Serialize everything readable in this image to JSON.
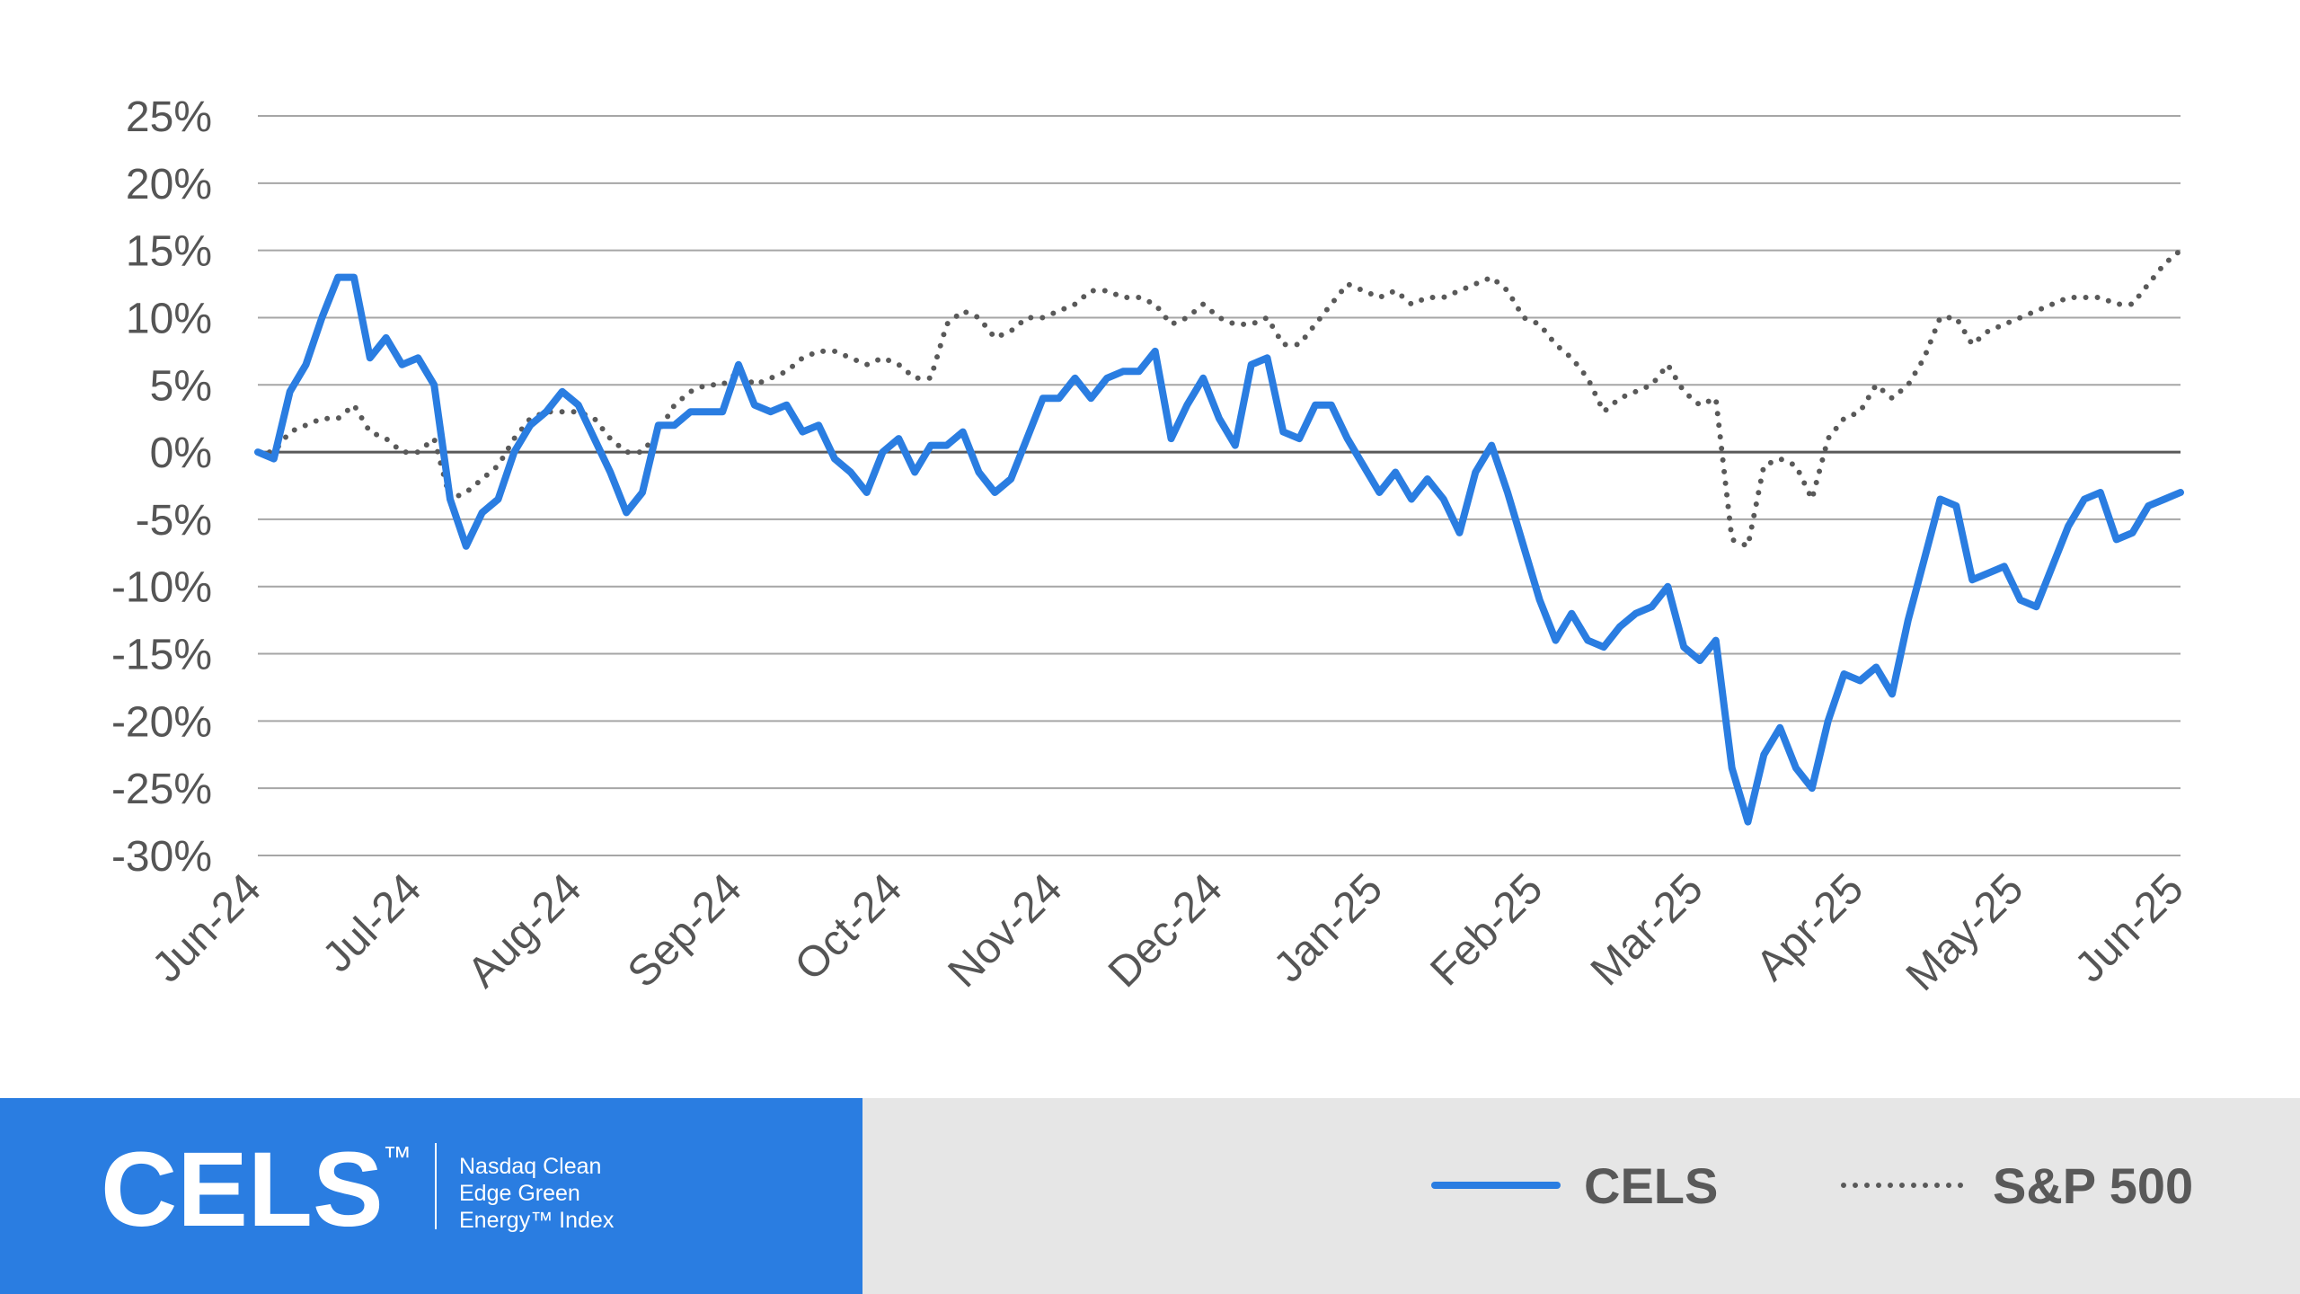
{
  "chart_data": {
    "type": "line",
    "categories": [
      "Jun-24",
      null,
      null,
      null,
      null,
      null,
      null,
      null,
      null,
      null,
      "Jul-24",
      null,
      null,
      null,
      null,
      null,
      null,
      null,
      null,
      null,
      "Aug-24",
      null,
      null,
      null,
      null,
      null,
      null,
      null,
      null,
      null,
      "Sep-24",
      null,
      null,
      null,
      null,
      null,
      null,
      null,
      null,
      null,
      "Oct-24",
      null,
      null,
      null,
      null,
      null,
      null,
      null,
      null,
      null,
      "Nov-24",
      null,
      null,
      null,
      null,
      null,
      null,
      null,
      null,
      null,
      "Dec-24",
      null,
      null,
      null,
      null,
      null,
      null,
      null,
      null,
      null,
      "Jan-25",
      null,
      null,
      null,
      null,
      null,
      null,
      null,
      null,
      null,
      "Feb-25",
      null,
      null,
      null,
      null,
      null,
      null,
      null,
      null,
      null,
      "Mar-25",
      null,
      null,
      null,
      null,
      null,
      null,
      null,
      null,
      null,
      "Apr-25",
      null,
      null,
      null,
      null,
      null,
      null,
      null,
      null,
      null,
      "May-25",
      null,
      null,
      null,
      null,
      null,
      null,
      null,
      null,
      null,
      "Jun-25"
    ],
    "series": [
      {
        "name": "CELS",
        "color": "#2a7de1",
        "style": "solid",
        "values": [
          0,
          -0.5,
          4.5,
          6.5,
          10,
          13,
          13,
          7,
          8.5,
          6.5,
          7,
          5,
          -3.5,
          -7,
          -4.5,
          -3.5,
          0,
          2,
          3,
          4.5,
          3.5,
          1,
          -1.5,
          -4.5,
          -3,
          2,
          2,
          3,
          3,
          3,
          6.5,
          3.5,
          3,
          3.5,
          1.5,
          2,
          -0.5,
          -1.5,
          -3,
          0,
          1,
          -1.5,
          0.5,
          0.5,
          1.5,
          -1.5,
          -3,
          -2,
          1,
          4,
          4,
          5.5,
          4,
          5.5,
          6,
          6,
          7.5,
          1,
          3.5,
          5.5,
          2.5,
          0.5,
          6.5,
          7,
          1.5,
          1,
          3.5,
          3.5,
          1,
          -1,
          -3,
          -1.5,
          -3.5,
          -2,
          -3.5,
          -6,
          -1.5,
          0.5,
          -3,
          -7,
          -11,
          -14,
          -12,
          -14,
          -14.5,
          -13,
          -12,
          -11.5,
          -10,
          -14.5,
          -15.5,
          -14,
          -23.5,
          -27.5,
          -22.5,
          -20.5,
          -23.5,
          -25,
          -20,
          -16.5,
          -17,
          -16,
          -18,
          -12.5,
          -8,
          -3.5,
          -4,
          -9.5,
          -9,
          -8.5,
          -11,
          -11.5,
          -8.5,
          -5.5,
          -3.5,
          -3,
          -6.5,
          -6,
          -4,
          -3.5,
          -3
        ]
      },
      {
        "name": "S&P 500",
        "color": "#595959",
        "style": "dotted",
        "values": [
          0,
          0,
          1.5,
          2,
          2.5,
          2.5,
          3.5,
          1.5,
          1,
          0,
          0,
          1,
          -3.5,
          -3,
          -2,
          -1,
          1,
          2.5,
          3,
          3,
          3,
          2.5,
          1,
          0,
          0,
          1.5,
          3.5,
          4.5,
          5,
          5,
          6,
          5,
          5.5,
          6,
          7,
          7.5,
          7.5,
          7,
          6.5,
          7,
          6.5,
          5.5,
          5.5,
          9.5,
          10.5,
          10,
          8.5,
          9,
          10,
          10,
          10.5,
          11,
          12,
          12,
          11.5,
          11.5,
          11,
          9.5,
          10,
          11,
          10,
          9.5,
          9.5,
          10,
          8,
          8,
          9.5,
          11,
          12.5,
          12,
          11.5,
          12,
          11,
          11.5,
          11.5,
          12,
          12.5,
          13,
          12,
          10,
          9.5,
          8,
          7,
          5.5,
          3,
          4,
          4.5,
          5,
          6.5,
          4.5,
          3.5,
          4,
          -6.5,
          -7,
          -1,
          -0.5,
          -1,
          -3.5,
          1,
          2.5,
          3,
          5,
          4,
          5,
          7,
          10,
          10,
          8,
          9,
          9.5,
          10,
          10.5,
          11,
          11.5,
          11.5,
          11.5,
          11,
          11,
          12.5,
          14,
          15
        ]
      }
    ],
    "ylim": [
      -30,
      25
    ],
    "yticks": [
      {
        "value": -30,
        "label": "-30%"
      },
      {
        "value": -25,
        "label": "-25%"
      },
      {
        "value": -20,
        "label": "-20%"
      },
      {
        "value": -15,
        "label": "-15%"
      },
      {
        "value": -10,
        "label": "-10%"
      },
      {
        "value": -5,
        "label": "-5%"
      },
      {
        "value": 0,
        "label": "0%"
      },
      {
        "value": 5,
        "label": "5%"
      },
      {
        "value": 10,
        "label": "10%"
      },
      {
        "value": 15,
        "label": "15%"
      },
      {
        "value": 20,
        "label": "20%"
      },
      {
        "value": 25,
        "label": "25%"
      }
    ],
    "grid": true
  },
  "logo": {
    "mark": "CELS",
    "trademark": "™",
    "lines": [
      "Nasdaq Clean",
      "Edge Green",
      "Energy™ Index"
    ]
  }
}
